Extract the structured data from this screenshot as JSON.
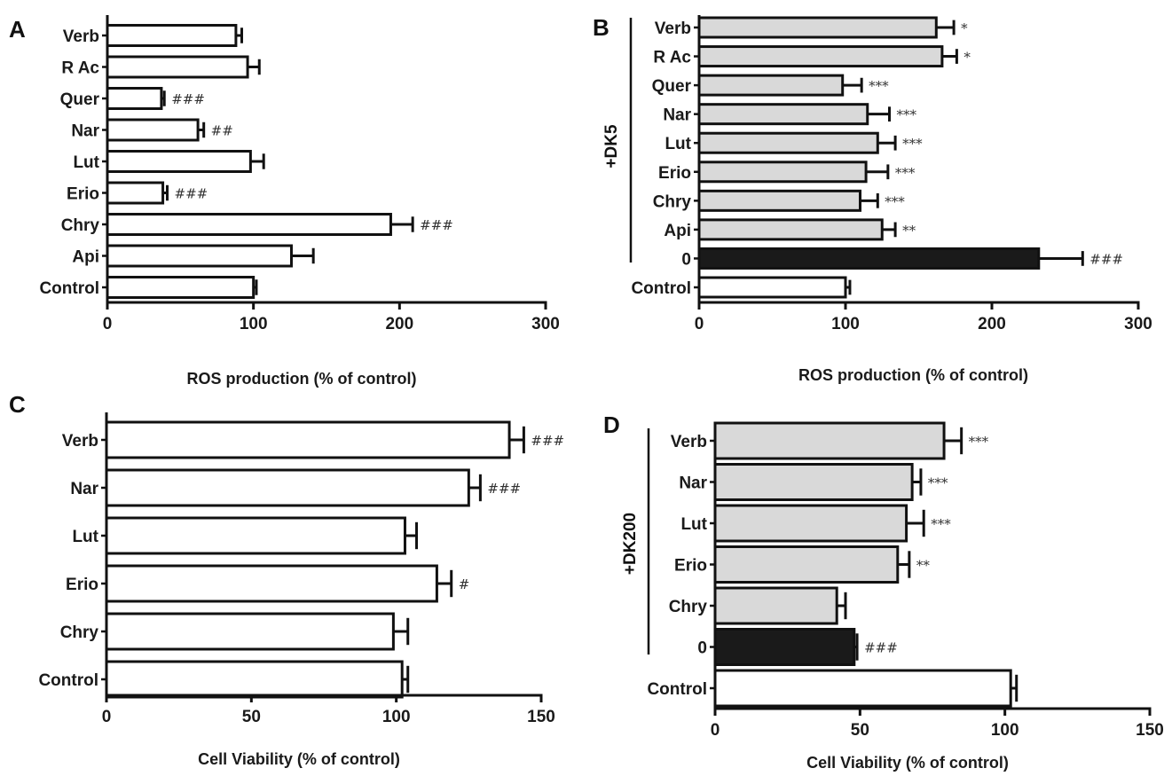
{
  "colors": {
    "treated": "#d9d9d9",
    "toxin": "#1a1a1a",
    "control": "#ffffff",
    "axis": "#111111"
  },
  "chart_data": [
    {
      "panel": "A",
      "type": "bar",
      "orientation": "horizontal",
      "group_label": "",
      "xlabel": "ROS production (% of control)",
      "xlim": [
        0,
        300
      ],
      "xticks": [
        0,
        100,
        200,
        300
      ],
      "bars": [
        {
          "category": "Verb",
          "value": 88,
          "error": 4,
          "sig": "",
          "fill": "control"
        },
        {
          "category": "R Ac",
          "value": 96,
          "error": 8,
          "sig": "",
          "fill": "control"
        },
        {
          "category": "Quer",
          "value": 37,
          "error": 2,
          "sig": "###",
          "fill": "control"
        },
        {
          "category": "Nar",
          "value": 62,
          "error": 4,
          "sig": "##",
          "fill": "control"
        },
        {
          "category": "Lut",
          "value": 98,
          "error": 9,
          "sig": "",
          "fill": "control"
        },
        {
          "category": "Erio",
          "value": 38,
          "error": 3,
          "sig": "###",
          "fill": "control"
        },
        {
          "category": "Chry",
          "value": 194,
          "error": 15,
          "sig": "###",
          "fill": "control"
        },
        {
          "category": "Api",
          "value": 126,
          "error": 15,
          "sig": "",
          "fill": "control"
        },
        {
          "category": "Control",
          "value": 100,
          "error": 2,
          "sig": "",
          "fill": "control"
        }
      ]
    },
    {
      "panel": "B",
      "type": "bar",
      "orientation": "horizontal",
      "group_label": "+DK5",
      "xlabel": "ROS production (% of control)",
      "xlim": [
        0,
        300
      ],
      "xticks": [
        0,
        100,
        200,
        300
      ],
      "bars": [
        {
          "category": "Verb",
          "value": 162,
          "error": 12,
          "sig": "*",
          "fill": "treated"
        },
        {
          "category": "R Ac",
          "value": 166,
          "error": 10,
          "sig": "*",
          "fill": "treated"
        },
        {
          "category": "Quer",
          "value": 98,
          "error": 13,
          "sig": "***",
          "fill": "treated"
        },
        {
          "category": "Nar",
          "value": 115,
          "error": 15,
          "sig": "***",
          "fill": "treated"
        },
        {
          "category": "Lut",
          "value": 122,
          "error": 12,
          "sig": "***",
          "fill": "treated"
        },
        {
          "category": "Erio",
          "value": 114,
          "error": 15,
          "sig": "***",
          "fill": "treated"
        },
        {
          "category": "Chry",
          "value": 110,
          "error": 12,
          "sig": "***",
          "fill": "treated"
        },
        {
          "category": "Api",
          "value": 125,
          "error": 9,
          "sig": "**",
          "fill": "treated"
        },
        {
          "category": "0",
          "value": 232,
          "error": 30,
          "sig": "###",
          "fill": "toxin"
        },
        {
          "category": "Control",
          "value": 100,
          "error": 3,
          "sig": "",
          "fill": "control"
        }
      ]
    },
    {
      "panel": "C",
      "type": "bar",
      "orientation": "horizontal",
      "group_label": "",
      "xlabel": "Cell Viability (% of control)",
      "xlim": [
        0,
        150
      ],
      "xticks": [
        0,
        50,
        100,
        150
      ],
      "bars": [
        {
          "category": "Verb",
          "value": 139,
          "error": 5,
          "sig": "###",
          "fill": "control"
        },
        {
          "category": "Nar",
          "value": 125,
          "error": 4,
          "sig": "###",
          "fill": "control"
        },
        {
          "category": "Lut",
          "value": 103,
          "error": 4,
          "sig": "",
          "fill": "control"
        },
        {
          "category": "Erio",
          "value": 114,
          "error": 5,
          "sig": "#",
          "fill": "control"
        },
        {
          "category": "Chry",
          "value": 99,
          "error": 5,
          "sig": "",
          "fill": "control"
        },
        {
          "category": "Control",
          "value": 102,
          "error": 2,
          "sig": "",
          "fill": "control"
        }
      ]
    },
    {
      "panel": "D",
      "type": "bar",
      "orientation": "horizontal",
      "group_label": "+DK200",
      "xlabel": "Cell Viability (% of control)",
      "xlim": [
        0,
        150
      ],
      "xticks": [
        0,
        50,
        100,
        150
      ],
      "bars": [
        {
          "category": "Verb",
          "value": 79,
          "error": 6,
          "sig": "***",
          "fill": "treated"
        },
        {
          "category": "Nar",
          "value": 68,
          "error": 3,
          "sig": "***",
          "fill": "treated"
        },
        {
          "category": "Lut",
          "value": 66,
          "error": 6,
          "sig": "***",
          "fill": "treated"
        },
        {
          "category": "Erio",
          "value": 63,
          "error": 4,
          "sig": "**",
          "fill": "treated"
        },
        {
          "category": "Chry",
          "value": 42,
          "error": 3,
          "sig": "",
          "fill": "treated"
        },
        {
          "category": "0",
          "value": 48,
          "error": 1,
          "sig": "###",
          "fill": "toxin"
        },
        {
          "category": "Control",
          "value": 102,
          "error": 2,
          "sig": "",
          "fill": "control"
        }
      ]
    }
  ]
}
